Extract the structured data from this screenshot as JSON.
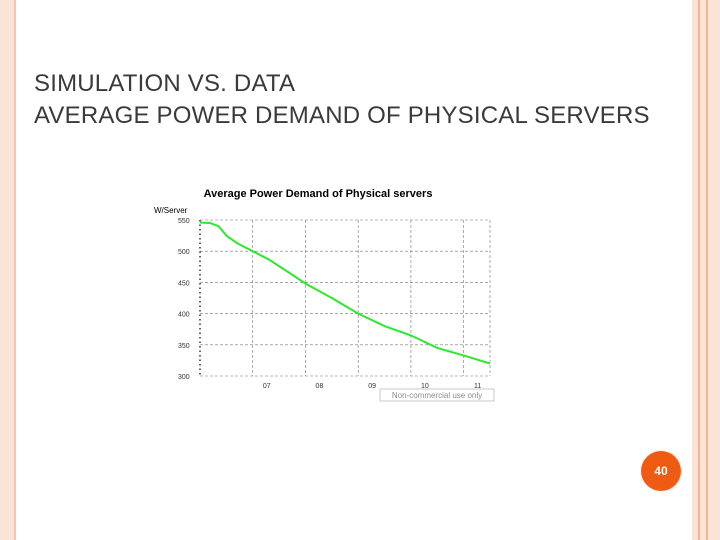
{
  "slide": {
    "title_line1": "Simulation vs. Data",
    "title_line2": "Average Power Demand of Physical Servers",
    "page_number": "40",
    "accent_color": "#ef5b12",
    "border_color": "#f4b792"
  },
  "chart_data": {
    "type": "line",
    "title": "Average Power Demand of Physical servers",
    "ylabel": "W/Server",
    "xlabel": "",
    "ylim": [
      300,
      550
    ],
    "xlim": [
      2006,
      2011.5
    ],
    "y_ticks": [
      "550",
      "500",
      "450",
      "400",
      "350",
      "300"
    ],
    "y_tick_values": [
      550,
      500,
      450,
      400,
      350,
      300
    ],
    "x_ticks": [
      "07",
      "08",
      "09",
      "10",
      "11"
    ],
    "x_tick_values": [
      2007,
      2008,
      2009,
      2010,
      2011
    ],
    "watermark": "Non-commercial use only",
    "line_color": "#2ee82e",
    "series": [
      {
        "name": "Average Power Demand",
        "x": [
          2006.0,
          2006.2,
          2006.35,
          2006.5,
          2006.7,
          2007.0,
          2007.3,
          2007.7,
          2008.0,
          2008.5,
          2009.0,
          2009.5,
          2010.0,
          2010.5,
          2011.0,
          2011.5
        ],
        "values": [
          546,
          545,
          540,
          525,
          513,
          500,
          487,
          465,
          448,
          425,
          400,
          380,
          365,
          345,
          333,
          320
        ]
      }
    ]
  }
}
